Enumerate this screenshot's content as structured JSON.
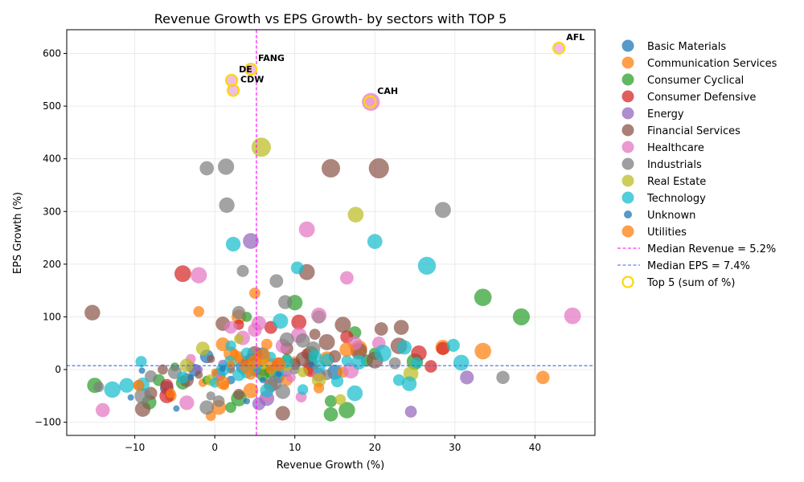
{
  "chart_data": {
    "type": "scatter",
    "title": "Revenue Growth vs EPS Growth- by sectors with TOP 5",
    "xlabel": "Revenue Growth (%)",
    "ylabel": "EPS Growth (%)",
    "xlim": [
      -18.5,
      47.5
    ],
    "ylim": [
      -125,
      645
    ],
    "xticks": [
      -10,
      0,
      10,
      20,
      30,
      40
    ],
    "yticks": [
      -100,
      0,
      100,
      200,
      300,
      400,
      500,
      600
    ],
    "grid": true,
    "legend_position": "right-outside",
    "median_revenue": 5.2,
    "median_eps": 7.4,
    "series": [
      {
        "name": "Basic Materials",
        "color": "#1f77b4",
        "points": [
          [
            -2.5,
            -1
          ],
          [
            0.5,
            -10
          ],
          [
            3.5,
            5
          ],
          [
            -6,
            -35
          ],
          [
            8,
            -15
          ],
          [
            12,
            20
          ],
          [
            15,
            -5
          ],
          [
            -1,
            25
          ],
          [
            6,
            30
          ],
          [
            2,
            -20
          ]
        ]
      },
      {
        "name": "Communication Services",
        "color": "#ff7f0e",
        "points": [
          [
            -2,
            110
          ],
          [
            5,
            145
          ],
          [
            3,
            100
          ],
          [
            1,
            48
          ],
          [
            6.5,
            48
          ],
          [
            0.5,
            -72
          ],
          [
            -0.5,
            -88
          ],
          [
            -5.5,
            -50
          ],
          [
            -9.5,
            -30
          ],
          [
            2,
            30
          ],
          [
            3,
            25
          ],
          [
            9,
            -20
          ],
          [
            16,
            -5
          ],
          [
            18,
            40
          ],
          [
            28.5,
            42
          ],
          [
            33.5,
            35
          ],
          [
            41,
            -15
          ],
          [
            12,
            5
          ],
          [
            -1.5,
            -25
          ],
          [
            4.5,
            -40
          ],
          [
            7,
            10
          ],
          [
            1.2,
            -30
          ],
          [
            10,
            15
          ],
          [
            14,
            20
          ],
          [
            6,
            0
          ]
        ]
      },
      {
        "name": "Consumer Cyclical",
        "color": "#2ca02c",
        "points": [
          [
            -15,
            -30
          ],
          [
            -8.2,
            -62
          ],
          [
            -5,
            5
          ],
          [
            -4,
            -25
          ],
          [
            -1,
            -20
          ],
          [
            2,
            -72
          ],
          [
            4,
            100
          ],
          [
            10,
            127
          ],
          [
            13,
            100
          ],
          [
            14.5,
            -85
          ],
          [
            14.5,
            -60
          ],
          [
            16.5,
            -77
          ],
          [
            17.5,
            70
          ],
          [
            19,
            17
          ],
          [
            33.5,
            137
          ],
          [
            38.3,
            100
          ],
          [
            6,
            -10
          ],
          [
            9,
            20
          ],
          [
            12,
            30
          ],
          [
            3,
            -55
          ],
          [
            7,
            -5
          ],
          [
            20,
            30
          ],
          [
            25,
            15
          ],
          [
            -7,
            -20
          ]
        ]
      },
      {
        "name": "Consumer Defensive",
        "color": "#d62728",
        "points": [
          [
            -4,
            182
          ],
          [
            3,
            85
          ],
          [
            10.5,
            90
          ],
          [
            11.5,
            30
          ],
          [
            16.5,
            62
          ],
          [
            25.5,
            31
          ],
          [
            27,
            6
          ],
          [
            28.5,
            40
          ],
          [
            7,
            80
          ],
          [
            4.5,
            20
          ],
          [
            -6,
            -50
          ],
          [
            -6,
            -30
          ],
          [
            8,
            10
          ],
          [
            12,
            0
          ],
          [
            5,
            0
          ]
        ]
      },
      {
        "name": "Energy",
        "color": "#9467bd",
        "points": [
          [
            4.5,
            244
          ],
          [
            5.5,
            -65
          ],
          [
            -2,
            0
          ],
          [
            31.5,
            -15
          ],
          [
            24.5,
            -80
          ],
          [
            6.5,
            -55
          ],
          [
            9,
            -5
          ],
          [
            1,
            10
          ],
          [
            -3,
            5
          ]
        ]
      },
      {
        "name": "Financial Services",
        "color": "#8c564b",
        "points": [
          [
            -15.3,
            108
          ],
          [
            -9,
            -75
          ],
          [
            -6.5,
            0
          ],
          [
            -8,
            -45
          ],
          [
            -3.5,
            -20
          ],
          [
            -0.5,
            20
          ],
          [
            1,
            87
          ],
          [
            3,
            -47
          ],
          [
            5,
            30
          ],
          [
            8.5,
            -83
          ],
          [
            11.5,
            185
          ],
          [
            14.5,
            382
          ],
          [
            20.5,
            382
          ],
          [
            12.5,
            67
          ],
          [
            14,
            52
          ],
          [
            16,
            85
          ],
          [
            20.8,
            77
          ],
          [
            23.3,
            80
          ],
          [
            23,
            45
          ],
          [
            20,
            18
          ],
          [
            15,
            25
          ],
          [
            13,
            -10
          ],
          [
            10,
            10
          ],
          [
            7,
            -30
          ],
          [
            4,
            15
          ],
          [
            2,
            0
          ],
          [
            -2,
            -10
          ],
          [
            9,
            40
          ],
          [
            11,
            20
          ],
          [
            18,
            35
          ]
        ]
      },
      {
        "name": "Healthcare",
        "color": "#e377c2",
        "points": [
          [
            -14,
            -77
          ],
          [
            -2,
            179
          ],
          [
            -3,
            20
          ],
          [
            -3.5,
            -63
          ],
          [
            2,
            80
          ],
          [
            5.5,
            88
          ],
          [
            11.5,
            266
          ],
          [
            10.5,
            65
          ],
          [
            13,
            103
          ],
          [
            16.5,
            174
          ],
          [
            17.5,
            50
          ],
          [
            17,
            -2
          ],
          [
            20.5,
            50
          ],
          [
            19.5,
            508
          ],
          [
            44.7,
            102
          ],
          [
            10.8,
            -52
          ],
          [
            8.5,
            45
          ],
          [
            5,
            75
          ],
          [
            3.5,
            60
          ],
          [
            9.5,
            -15
          ],
          [
            13,
            -10
          ],
          [
            6.5,
            -50
          ],
          [
            0.5,
            -15
          ]
        ]
      },
      {
        "name": "Industrials",
        "color": "#7f7f7f",
        "points": [
          [
            -1,
            382
          ],
          [
            1.4,
            385
          ],
          [
            1.5,
            312
          ],
          [
            3.5,
            187
          ],
          [
            7.7,
            168
          ],
          [
            8.8,
            128
          ],
          [
            3,
            108
          ],
          [
            9,
            57
          ],
          [
            11,
            55
          ],
          [
            12.3,
            40
          ],
          [
            -8,
            -13
          ],
          [
            -14.5,
            -33
          ],
          [
            -5,
            -5
          ],
          [
            -1,
            -72
          ],
          [
            0.5,
            -60
          ],
          [
            7.5,
            -25
          ],
          [
            8.5,
            -42
          ],
          [
            14,
            -10
          ],
          [
            22.5,
            12
          ],
          [
            28.5,
            303
          ],
          [
            36,
            -15
          ],
          [
            -0.5,
            -50
          ],
          [
            -9,
            -50
          ],
          [
            2,
            5
          ],
          [
            5,
            -5
          ],
          [
            10,
            0
          ]
        ]
      },
      {
        "name": "Real Estate",
        "color": "#bcbd22",
        "points": [
          [
            5.8,
            422
          ],
          [
            17.6,
            294
          ],
          [
            3,
            58
          ],
          [
            -1.5,
            40
          ],
          [
            -3.5,
            8
          ],
          [
            6,
            10
          ],
          [
            13,
            -20
          ],
          [
            15.7,
            -57
          ],
          [
            24.5,
            -8
          ],
          [
            -0.5,
            -20
          ],
          [
            9,
            5
          ],
          [
            11,
            -5
          ]
        ]
      },
      {
        "name": "Technology",
        "color": "#17becf",
        "points": [
          [
            2.3,
            238
          ],
          [
            10.3,
            193
          ],
          [
            20,
            243
          ],
          [
            26.5,
            197
          ],
          [
            8.2,
            92
          ],
          [
            2,
            45
          ],
          [
            4,
            30
          ],
          [
            -9.2,
            15
          ],
          [
            -12.8,
            -38
          ],
          [
            -9,
            -28
          ],
          [
            -4,
            -15
          ],
          [
            0,
            -25
          ],
          [
            3,
            -10
          ],
          [
            6.5,
            -40
          ],
          [
            11,
            -38
          ],
          [
            15.3,
            -22
          ],
          [
            17.5,
            -45
          ],
          [
            23,
            -20
          ],
          [
            24.3,
            -27
          ],
          [
            21,
            31
          ],
          [
            23.7,
            42
          ],
          [
            25.2,
            13
          ],
          [
            29.8,
            46
          ],
          [
            30.8,
            13
          ],
          [
            14,
            18
          ],
          [
            12.5,
            25
          ],
          [
            16.5,
            17
          ],
          [
            18,
            14
          ],
          [
            7,
            24
          ],
          [
            9,
            15
          ],
          [
            5,
            5
          ],
          [
            4,
            -5
          ],
          [
            1,
            0
          ],
          [
            13,
            5
          ],
          [
            -11,
            -30
          ],
          [
            8,
            -5
          ],
          [
            2,
            15
          ]
        ]
      },
      {
        "name": "Unknown",
        "color": "#1f77b4",
        "points": [
          [
            -10.5,
            -53
          ],
          [
            -4.8,
            -74
          ],
          [
            -9.1,
            -2
          ],
          [
            4,
            -60
          ],
          [
            -3,
            -15
          ],
          [
            1,
            2
          ],
          [
            6,
            -20
          ],
          [
            8,
            -8
          ],
          [
            12,
            10
          ]
        ]
      },
      {
        "name": "Utilities",
        "color": "#ff7f0e",
        "points": [
          [
            0,
            -5
          ],
          [
            2,
            10
          ],
          [
            3,
            20
          ],
          [
            4,
            5
          ],
          [
            5,
            15
          ],
          [
            6,
            25
          ],
          [
            7,
            0
          ],
          [
            8,
            10
          ],
          [
            2.5,
            30
          ],
          [
            4.5,
            -10
          ],
          [
            13,
            -35
          ],
          [
            16.5,
            38
          ],
          [
            -9.5,
            -30
          ],
          [
            -5.5,
            -45
          ],
          [
            1,
            -25
          ]
        ]
      }
    ],
    "top5": [
      {
        "label": "AFL",
        "x": 43,
        "y": 610
      },
      {
        "label": "FANG",
        "x": 4.5,
        "y": 570
      },
      {
        "label": "DE",
        "x": 2.1,
        "y": 549
      },
      {
        "label": "CDW",
        "x": 2.3,
        "y": 530
      },
      {
        "label": "CAH",
        "x": 19.4,
        "y": 508
      }
    ],
    "legend": {
      "sectors": [
        "Basic Materials",
        "Communication Services",
        "Consumer Cyclical",
        "Consumer Defensive",
        "Energy",
        "Financial Services",
        "Healthcare",
        "Industrials",
        "Real Estate",
        "Technology",
        "Unknown",
        "Utilities"
      ],
      "median_revenue_label": "Median Revenue = 5.2%",
      "median_eps_label": "Median EPS = 7.4%",
      "top5_label": "Top 5 (sum of %)"
    },
    "colors": {
      "median_revenue_line": "#ff00ff",
      "median_eps_line": "#4169e1",
      "top5_ring": "#ffd700"
    }
  }
}
